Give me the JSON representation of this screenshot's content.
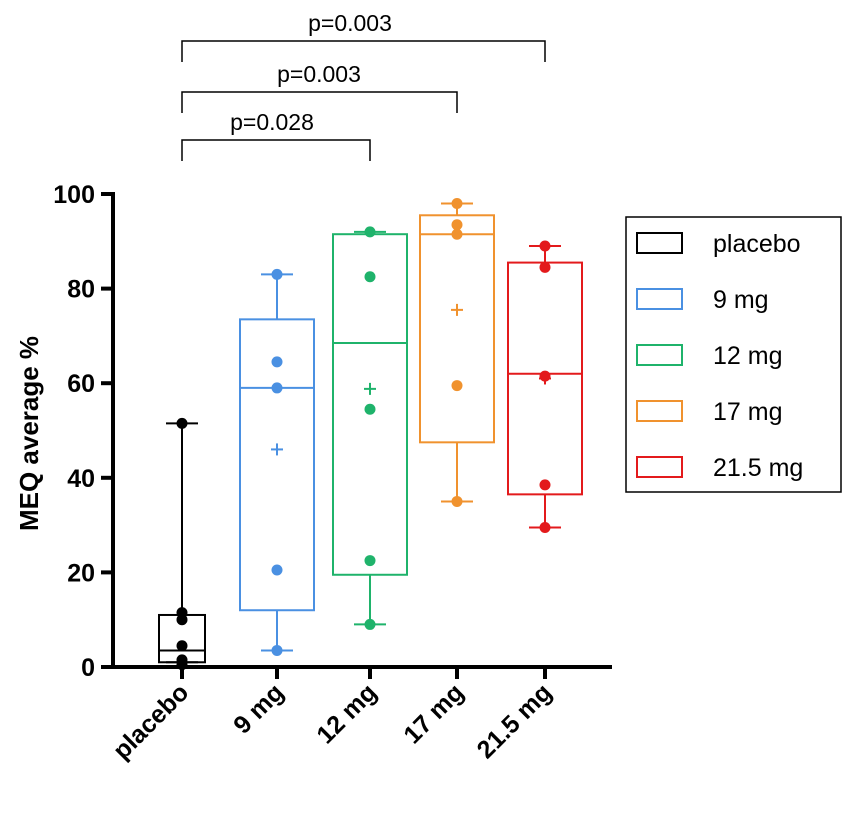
{
  "chart_data": {
    "type": "boxplot",
    "title": "",
    "xlabel": "",
    "ylabel": "MEQ average %",
    "ylim": [
      0,
      100
    ],
    "yticks": [
      0,
      20,
      40,
      60,
      80,
      100
    ],
    "categories": [
      "placebo",
      "9 mg",
      "12 mg",
      "17 mg",
      "21.5 mg"
    ],
    "legend": {
      "position": "right",
      "entries": [
        "placebo",
        "9 mg",
        "12 mg",
        "17 mg",
        "21.5 mg"
      ]
    },
    "series": [
      {
        "name": "placebo",
        "color": "#000000",
        "min": 1,
        "q1": 1,
        "median": 3.5,
        "q3": 11,
        "max": 51.5,
        "mean": null,
        "points": [
          51.5,
          11.5,
          10,
          4.5,
          1.5,
          0.5
        ]
      },
      {
        "name": "9 mg",
        "color": "#4a90e2",
        "min": 3.5,
        "q1": 12,
        "median": 59,
        "q3": 73.5,
        "max": 83,
        "mean": 46,
        "points": [
          83,
          64.5,
          59,
          20.5,
          3.5
        ]
      },
      {
        "name": "12 mg",
        "color": "#1fb36b",
        "min": 9,
        "q1": 19.5,
        "median": 68.5,
        "q3": 91.5,
        "max": 92,
        "mean": 58.8,
        "points": [
          92,
          82.5,
          54.5,
          22.5,
          9
        ]
      },
      {
        "name": "17 mg",
        "color": "#f0922e",
        "min": 35,
        "q1": 47.5,
        "median": 91.5,
        "q3": 95.5,
        "max": 98,
        "mean": 75.5,
        "points": [
          98,
          93.5,
          91.5,
          59.5,
          35
        ]
      },
      {
        "name": "21.5 mg",
        "color": "#e31a1c",
        "min": 29.5,
        "q1": 36.5,
        "median": 62,
        "q3": 85.5,
        "max": 89,
        "mean": 61,
        "points": [
          89,
          84.5,
          61.5,
          38.5,
          29.5
        ]
      }
    ],
    "significance": [
      {
        "from": "placebo",
        "to": "12 mg",
        "label": "p=0.028"
      },
      {
        "from": "placebo",
        "to": "17 mg",
        "label": "p=0.003"
      },
      {
        "from": "placebo",
        "to": "21.5 mg",
        "label": "p=0.003"
      }
    ]
  }
}
